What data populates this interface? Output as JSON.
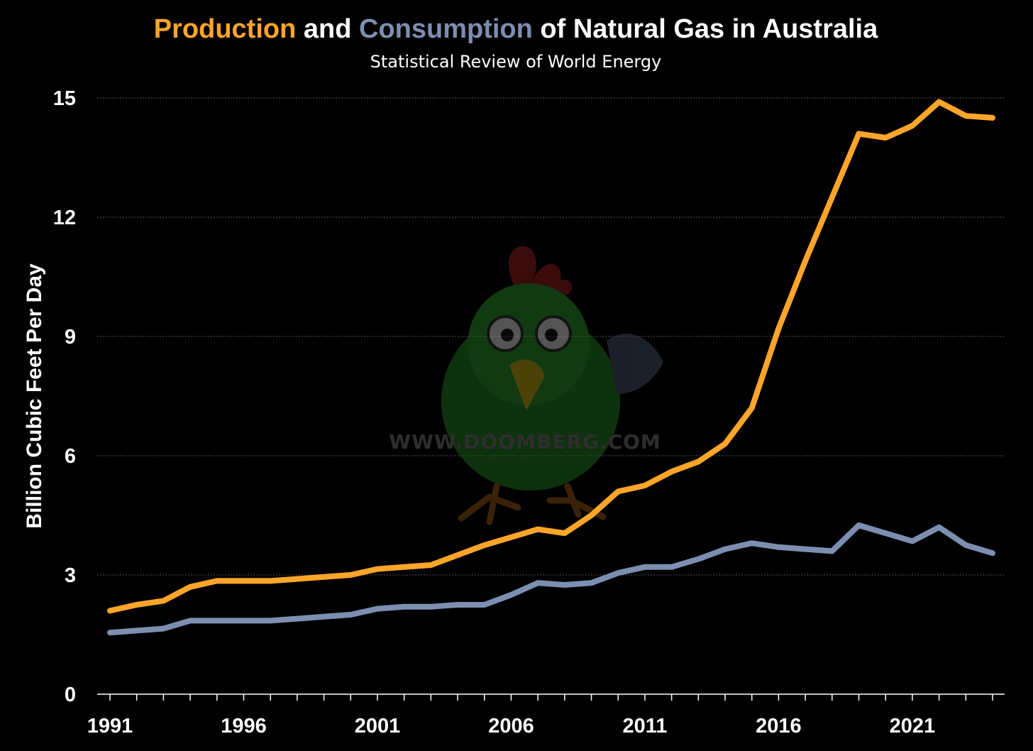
{
  "title": {
    "part1": "Production",
    "part2": " and ",
    "part3": "Consumption",
    "part4": " of Natural Gas in Australia"
  },
  "subtitle": "Statistical Review of World Energy",
  "watermark": "WWW.DOOMBERG.COM",
  "colors": {
    "production": "#ffa52a",
    "consumption": "#7c8fb1",
    "background": "#000000",
    "grid": "#555555"
  },
  "chart_data": {
    "type": "line",
    "title": "Production and Consumption of Natural Gas in Australia",
    "subtitle": "Statistical Review of World Energy",
    "xlabel": "",
    "ylabel": "Billion Cubic Feet Per Day",
    "ylim": [
      0,
      15
    ],
    "yticks": [
      "0",
      "3",
      "6",
      "9",
      "12",
      "15"
    ],
    "xticks": [
      "1991",
      "1996",
      "2001",
      "2006",
      "2011",
      "2016",
      "2021"
    ],
    "grid": "horizontal dotted",
    "legend": "none (series named by colored words in title)",
    "x": [
      1991,
      1992,
      1993,
      1994,
      1995,
      1996,
      1997,
      1998,
      1999,
      2000,
      2001,
      2002,
      2003,
      2004,
      2005,
      2006,
      2007,
      2008,
      2009,
      2010,
      2011,
      2012,
      2013,
      2014,
      2015,
      2016,
      2017,
      2018,
      2019,
      2020,
      2021,
      2022,
      2023,
      2024
    ],
    "series": [
      {
        "name": "Production",
        "color": "#ffa52a",
        "values": [
          2.1,
          2.25,
          2.35,
          2.7,
          2.85,
          2.85,
          2.85,
          2.9,
          2.95,
          3.0,
          3.15,
          3.2,
          3.25,
          3.5,
          3.75,
          3.95,
          4.15,
          4.05,
          4.5,
          5.1,
          5.25,
          5.6,
          5.85,
          6.3,
          7.2,
          9.2,
          10.9,
          12.5,
          14.1,
          14.0,
          14.3,
          14.9,
          14.55,
          14.5
        ]
      },
      {
        "name": "Consumption",
        "color": "#7c8fb1",
        "values": [
          1.55,
          1.6,
          1.65,
          1.85,
          1.85,
          1.85,
          1.85,
          1.9,
          1.95,
          2.0,
          2.15,
          2.2,
          2.2,
          2.25,
          2.25,
          2.5,
          2.8,
          2.75,
          2.8,
          3.05,
          3.2,
          3.2,
          3.4,
          3.65,
          3.8,
          3.7,
          3.65,
          3.6,
          4.25,
          4.05,
          3.85,
          4.2,
          3.75,
          3.55
        ]
      }
    ]
  }
}
